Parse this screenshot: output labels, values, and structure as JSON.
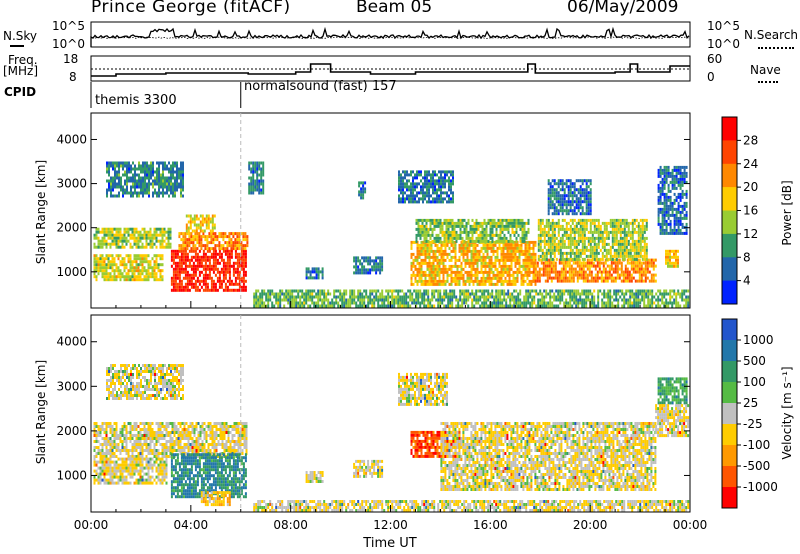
{
  "header": {
    "station": "Prince George (fitACF)",
    "beam": "Beam 05",
    "date": "06/May/2009"
  },
  "top_panels": {
    "nsky_label": "N.Sky",
    "nsky_ticks": [
      "10^5",
      "10^0"
    ],
    "nsearch_label": "N.Search",
    "nsearch_ticks": [
      "10^5",
      "10^0"
    ],
    "freq_label": "Freq.",
    "freq_unit": "[MHz]",
    "freq_ticks": [
      "18",
      "8"
    ],
    "nave_label": "Nave",
    "nave_ticks": [
      "60",
      "0"
    ],
    "cpid_label": "CPID",
    "cpid_entries": [
      {
        "label": "themis 3300",
        "start_hour": 0
      },
      {
        "label": "normalsound (fast) 157",
        "start_hour": 6
      }
    ]
  },
  "chart_data": [
    {
      "type": "heatmap",
      "name": "power",
      "ylabel": "Slant Range [km]",
      "ylim": [
        180,
        4600
      ],
      "yticks": [
        1000,
        2000,
        3000,
        4000
      ],
      "xlim": [
        0,
        24
      ],
      "colorbar": {
        "label": "Power [dB]",
        "ticks": [
          "28",
          "24",
          "20",
          "16",
          "12",
          "8",
          "4"
        ],
        "colors": [
          "#ff0000",
          "#ff4400",
          "#ff8800",
          "#ffcc00",
          "#99cc33",
          "#339966",
          "#2266aa",
          "#0022ff"
        ]
      },
      "regions": [
        {
          "t0": 0.1,
          "t1": 3.2,
          "r0": 1550,
          "r1": 2000,
          "level": 0.45
        },
        {
          "t0": 0.1,
          "t1": 2.9,
          "r0": 800,
          "r1": 1400,
          "level": 0.5
        },
        {
          "t0": 3.2,
          "t1": 6.2,
          "r0": 600,
          "r1": 1500,
          "level": 0.95
        },
        {
          "t0": 3.5,
          "t1": 6.3,
          "r0": 1500,
          "r1": 1900,
          "level": 0.72
        },
        {
          "t0": 3.8,
          "t1": 5.0,
          "r0": 1900,
          "r1": 2300,
          "level": 0.55
        },
        {
          "t0": 0.6,
          "t1": 3.7,
          "r0": 2700,
          "r1": 3500,
          "level": 0.22
        },
        {
          "t0": 6.3,
          "t1": 6.9,
          "r0": 2800,
          "r1": 3500,
          "level": 0.2
        },
        {
          "t0": 8.6,
          "t1": 9.3,
          "r0": 850,
          "r1": 1100,
          "level": 0.18
        },
        {
          "t0": 10.5,
          "t1": 11.7,
          "r0": 1000,
          "r1": 1350,
          "level": 0.2
        },
        {
          "t0": 10.7,
          "t1": 11.0,
          "r0": 2700,
          "r1": 3050,
          "level": 0.2
        },
        {
          "t0": 12.3,
          "t1": 14.5,
          "r0": 2600,
          "r1": 3300,
          "level": 0.18
        },
        {
          "t0": 12.8,
          "t1": 17.8,
          "r0": 700,
          "r1": 1700,
          "level": 0.62
        },
        {
          "t0": 13.0,
          "t1": 17.5,
          "r0": 1700,
          "r1": 2200,
          "level": 0.4
        },
        {
          "t0": 17.7,
          "t1": 22.6,
          "r0": 800,
          "r1": 1300,
          "level": 0.7
        },
        {
          "t0": 17.9,
          "t1": 22.3,
          "r0": 1300,
          "r1": 2200,
          "level": 0.45
        },
        {
          "t0": 18.3,
          "t1": 20.0,
          "r0": 2300,
          "r1": 3100,
          "level": 0.16
        },
        {
          "t0": 22.7,
          "t1": 23.9,
          "r0": 1900,
          "r1": 3400,
          "level": 0.15
        },
        {
          "t0": 23.0,
          "t1": 23.5,
          "r0": 1100,
          "r1": 1500,
          "level": 0.6
        },
        {
          "t0": 6.5,
          "t1": 23.9,
          "r0": 200,
          "r1": 600,
          "level": 0.35
        }
      ]
    },
    {
      "type": "heatmap",
      "name": "velocity",
      "ylabel": "Slant Range [km]",
      "ylim": [
        180,
        4600
      ],
      "yticks": [
        1000,
        2000,
        3000,
        4000
      ],
      "xlim": [
        0,
        24
      ],
      "xlabel": "Time UT",
      "xticks": [
        "00:00",
        "04:00",
        "08:00",
        "12:00",
        "16:00",
        "20:00",
        "00:00"
      ],
      "colorbar": {
        "label": "Velocity [m s⁻¹]",
        "ticks": [
          "1000",
          "500",
          "100",
          "25",
          "-25",
          "-100",
          "-500",
          "-1000"
        ],
        "colors": [
          "#2255cc",
          "#2277aa",
          "#339966",
          "#55bb44",
          "#c0c0c0",
          "#ffcc00",
          "#ff9900",
          "#ff5500",
          "#ff0000"
        ]
      },
      "regions": [
        {
          "t0": 0.1,
          "t1": 6.2,
          "r0": 1400,
          "r1": 2200,
          "level": 0.45
        },
        {
          "t0": 0.1,
          "t1": 3.0,
          "r0": 800,
          "r1": 1400,
          "level": 0.45
        },
        {
          "t0": 3.2,
          "t1": 6.2,
          "r0": 550,
          "r1": 1500,
          "level": 0.8
        },
        {
          "t0": 4.4,
          "t1": 5.6,
          "r0": 350,
          "r1": 650,
          "level": 0.35
        },
        {
          "t0": 0.6,
          "t1": 3.7,
          "r0": 2700,
          "r1": 3500,
          "level": 0.45
        },
        {
          "t0": 8.6,
          "t1": 9.3,
          "r0": 850,
          "r1": 1100,
          "level": 0.45
        },
        {
          "t0": 10.5,
          "t1": 11.7,
          "r0": 1000,
          "r1": 1350,
          "level": 0.45
        },
        {
          "t0": 12.3,
          "t1": 14.3,
          "r0": 2600,
          "r1": 3300,
          "level": 0.45
        },
        {
          "t0": 12.8,
          "t1": 14.8,
          "r0": 1400,
          "r1": 2000,
          "level": 0.1
        },
        {
          "t0": 14.0,
          "t1": 22.6,
          "r0": 700,
          "r1": 2200,
          "level": 0.45
        },
        {
          "t0": 22.7,
          "t1": 23.9,
          "r0": 2600,
          "r1": 3200,
          "level": 0.7
        },
        {
          "t0": 22.6,
          "t1": 23.9,
          "r0": 1900,
          "r1": 2600,
          "level": 0.45
        },
        {
          "t0": 6.5,
          "t1": 23.9,
          "r0": 200,
          "r1": 450,
          "level": 0.45
        }
      ]
    }
  ]
}
